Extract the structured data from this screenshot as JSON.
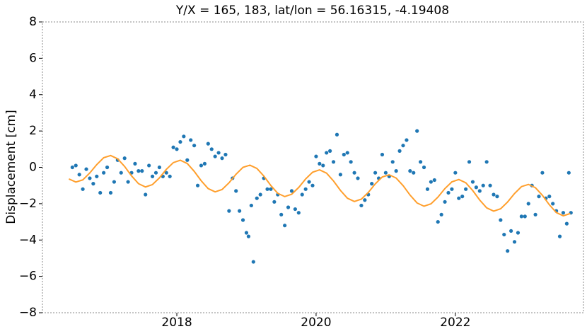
{
  "chart_data": {
    "type": "scatter",
    "title": "Y/X = 165, 183, lat/lon = 56.16315, -4.19408",
    "ylabel": "Displacement [cm]",
    "xlim": [
      2016.07,
      2023.84
    ],
    "ylim": [
      -8,
      8
    ],
    "xticks": [
      2018,
      2020,
      2022
    ],
    "yticks": [
      {
        "value": -8,
        "label": "−8"
      },
      {
        "value": -6,
        "label": "−6"
      },
      {
        "value": -4,
        "label": "−4"
      },
      {
        "value": -2,
        "label": "−2"
      },
      0,
      2,
      4,
      6,
      8
    ],
    "series": [
      {
        "type": "scatter",
        "color": "#1f77b4",
        "x": [
          2016.5,
          2016.55,
          2016.6,
          2016.65,
          2016.7,
          2016.75,
          2016.8,
          2016.85,
          2016.9,
          2016.95,
          2017.0,
          2017.05,
          2017.1,
          2017.15,
          2017.2,
          2017.25,
          2017.3,
          2017.35,
          2017.4,
          2017.45,
          2017.5,
          2017.55,
          2017.6,
          2017.65,
          2017.7,
          2017.75,
          2017.8,
          2017.85,
          2017.9,
          2017.95,
          2018.0,
          2018.05,
          2018.1,
          2018.15,
          2018.2,
          2018.25,
          2018.3,
          2018.35,
          2018.4,
          2018.45,
          2018.5,
          2018.55,
          2018.6,
          2018.65,
          2018.7,
          2018.75,
          2018.8,
          2018.85,
          2018.9,
          2018.95,
          2019.0,
          2019.03,
          2019.07,
          2019.1,
          2019.15,
          2019.2,
          2019.25,
          2019.3,
          2019.35,
          2019.4,
          2019.45,
          2019.5,
          2019.55,
          2019.6,
          2019.65,
          2019.7,
          2019.75,
          2019.8,
          2019.85,
          2019.9,
          2019.95,
          2020.0,
          2020.05,
          2020.1,
          2020.15,
          2020.2,
          2020.25,
          2020.3,
          2020.35,
          2020.4,
          2020.45,
          2020.5,
          2020.55,
          2020.6,
          2020.65,
          2020.7,
          2020.75,
          2020.8,
          2020.85,
          2020.9,
          2020.95,
          2021.0,
          2021.05,
          2021.1,
          2021.15,
          2021.2,
          2021.25,
          2021.3,
          2021.35,
          2021.4,
          2021.45,
          2021.5,
          2021.55,
          2021.6,
          2021.65,
          2021.7,
          2021.75,
          2021.8,
          2021.85,
          2021.9,
          2021.95,
          2022.0,
          2022.05,
          2022.1,
          2022.15,
          2022.2,
          2022.25,
          2022.3,
          2022.35,
          2022.4,
          2022.45,
          2022.5,
          2022.55,
          2022.6,
          2022.65,
          2022.7,
          2022.75,
          2022.8,
          2022.85,
          2022.9,
          2022.95,
          2023.0,
          2023.05,
          2023.1,
          2023.15,
          2023.2,
          2023.25,
          2023.3,
          2023.35,
          2023.4,
          2023.45,
          2023.5,
          2023.55,
          2023.6,
          2023.63,
          2023.66
        ],
        "values": [
          0.0,
          0.1,
          -0.4,
          -1.2,
          -0.1,
          -0.6,
          -0.9,
          -0.5,
          -1.4,
          -0.3,
          0.0,
          -1.4,
          -0.8,
          0.4,
          -0.3,
          0.5,
          -0.8,
          -0.3,
          0.2,
          -0.2,
          -0.2,
          -1.5,
          0.1,
          -0.5,
          -0.3,
          0.0,
          -0.5,
          -0.3,
          -0.5,
          1.1,
          1.0,
          1.4,
          1.7,
          0.4,
          1.5,
          1.2,
          -1.0,
          0.1,
          0.2,
          1.3,
          1.0,
          0.6,
          0.8,
          0.5,
          0.7,
          -2.4,
          -0.6,
          -1.3,
          -2.4,
          -2.9,
          -3.6,
          -3.8,
          -2.1,
          -5.2,
          -1.7,
          -1.5,
          -0.6,
          -1.2,
          -1.2,
          -1.9,
          -1.5,
          -2.6,
          -3.2,
          -2.2,
          -1.3,
          -2.3,
          -2.5,
          -1.5,
          -1.2,
          -0.8,
          -1.0,
          0.6,
          0.2,
          0.1,
          0.8,
          0.9,
          0.3,
          1.8,
          -0.4,
          0.7,
          0.8,
          0.3,
          -0.3,
          -0.6,
          -2.1,
          -1.8,
          -1.5,
          -0.9,
          -0.3,
          -0.6,
          0.7,
          -0.3,
          -0.5,
          0.3,
          -0.2,
          0.9,
          1.2,
          1.5,
          -0.2,
          -0.3,
          2.0,
          0.3,
          0.0,
          -1.2,
          -0.8,
          -0.7,
          -3.0,
          -2.6,
          -1.9,
          -1.4,
          -1.2,
          -0.3,
          -1.7,
          -1.6,
          -1.2,
          0.3,
          -0.8,
          -1.1,
          -1.3,
          -1.0,
          0.3,
          -1.0,
          -1.5,
          -1.6,
          -2.9,
          -3.7,
          -4.6,
          -3.5,
          -4.1,
          -3.6,
          -2.7,
          -2.7,
          -2.0,
          -1.0,
          -2.6,
          -1.6,
          -0.3,
          -1.7,
          -1.6,
          -2.0,
          -2.4,
          -3.8,
          -2.5,
          -3.1,
          -0.3,
          -2.5
        ]
      },
      {
        "type": "line",
        "color": "#ff9f2d",
        "x": [
          2016.45,
          2016.55,
          2016.65,
          2016.75,
          2016.85,
          2016.95,
          2017.05,
          2017.15,
          2017.25,
          2017.35,
          2017.45,
          2017.55,
          2017.65,
          2017.75,
          2017.85,
          2017.95,
          2018.05,
          2018.15,
          2018.25,
          2018.35,
          2018.45,
          2018.55,
          2018.65,
          2018.75,
          2018.85,
          2018.95,
          2019.05,
          2019.15,
          2019.25,
          2019.35,
          2019.45,
          2019.55,
          2019.65,
          2019.75,
          2019.85,
          2019.95,
          2020.05,
          2020.15,
          2020.25,
          2020.35,
          2020.45,
          2020.55,
          2020.65,
          2020.75,
          2020.85,
          2020.95,
          2021.05,
          2021.15,
          2021.25,
          2021.35,
          2021.45,
          2021.55,
          2021.65,
          2021.75,
          2021.85,
          2021.95,
          2022.05,
          2022.15,
          2022.25,
          2022.35,
          2022.45,
          2022.55,
          2022.65,
          2022.75,
          2022.85,
          2022.95,
          2023.05,
          2023.15,
          2023.25,
          2023.35,
          2023.45,
          2023.55,
          2023.65
        ],
        "values": [
          -0.64,
          -0.81,
          -0.69,
          -0.31,
          0.15,
          0.53,
          0.65,
          0.47,
          0.05,
          -0.47,
          -0.9,
          -1.08,
          -0.95,
          -0.58,
          -0.11,
          0.26,
          0.39,
          0.21,
          -0.22,
          -0.74,
          -1.17,
          -1.35,
          -1.22,
          -0.85,
          -0.38,
          0.0,
          0.12,
          -0.06,
          -0.48,
          -1.0,
          -1.43,
          -1.61,
          -1.48,
          -1.11,
          -0.64,
          -0.27,
          -0.14,
          -0.32,
          -0.75,
          -1.27,
          -1.7,
          -1.88,
          -1.75,
          -1.38,
          -0.91,
          -0.53,
          -0.41,
          -0.59,
          -1.01,
          -1.53,
          -1.96,
          -2.14,
          -2.01,
          -1.64,
          -1.17,
          -0.8,
          -0.67,
          -0.85,
          -1.28,
          -1.8,
          -2.23,
          -2.41,
          -2.28,
          -1.91,
          -1.44,
          -1.06,
          -0.94,
          -1.12,
          -1.54,
          -2.06,
          -2.49,
          -2.67,
          -2.54
        ]
      }
    ]
  }
}
